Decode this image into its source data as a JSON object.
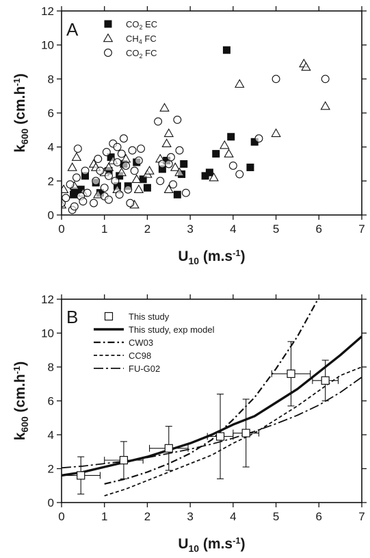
{
  "chart_data": [
    {
      "panel": "A",
      "type": "scatter",
      "xlabel": {
        "main": "U",
        "sub": "10",
        "units_pre": " (m.s",
        "sup": "-1",
        "units_post": ")"
      },
      "ylabel": {
        "main": "k",
        "sub": "600",
        "units_pre": " (cm.h",
        "sup": "-1",
        "units_post": ")"
      },
      "xlim": [
        0,
        7
      ],
      "ylim": [
        0,
        12
      ],
      "xticks": [
        0,
        1,
        2,
        3,
        4,
        5,
        6,
        7
      ],
      "yticks": [
        0,
        2,
        4,
        6,
        8,
        10,
        12
      ],
      "grid": false,
      "legend_position": "top-left",
      "series": [
        {
          "name": {
            "pre": "CO",
            "sub": "2",
            "post": " EC"
          },
          "marker": "filled-square",
          "points": [
            [
              0.28,
              1.2
            ],
            [
              0.3,
              1.4
            ],
            [
              0.45,
              1.5
            ],
            [
              0.55,
              2.3
            ],
            [
              0.8,
              1.9
            ],
            [
              0.9,
              1.3
            ],
            [
              1.1,
              2.6
            ],
            [
              1.15,
              3.4
            ],
            [
              1.3,
              1.7
            ],
            [
              1.35,
              2.3
            ],
            [
              1.45,
              3.0
            ],
            [
              1.55,
              1.7
            ],
            [
              1.75,
              3.1
            ],
            [
              1.9,
              2.1
            ],
            [
              2.0,
              1.6
            ],
            [
              2.35,
              2.7
            ],
            [
              2.45,
              3.2
            ],
            [
              2.7,
              1.2
            ],
            [
              2.8,
              2.4
            ],
            [
              2.85,
              3.0
            ],
            [
              3.35,
              2.3
            ],
            [
              3.45,
              2.5
            ],
            [
              3.6,
              3.6
            ],
            [
              3.85,
              9.7
            ],
            [
              3.95,
              4.6
            ],
            [
              4.4,
              2.8
            ],
            [
              4.5,
              4.3
            ]
          ]
        },
        {
          "name": {
            "pre": "CH",
            "sub": "4",
            "post": " FC"
          },
          "marker": "open-triangle",
          "points": [
            [
              0.0,
              0.6
            ],
            [
              0.05,
              1.5
            ],
            [
              0.25,
              2.8
            ],
            [
              0.3,
              1.7
            ],
            [
              0.35,
              3.4
            ],
            [
              0.5,
              1.3
            ],
            [
              0.75,
              3.0
            ],
            [
              0.8,
              2.8
            ],
            [
              0.85,
              1.2
            ],
            [
              1.0,
              2.5
            ],
            [
              1.1,
              2.8
            ],
            [
              1.2,
              3.2
            ],
            [
              1.3,
              1.5
            ],
            [
              1.4,
              2.5
            ],
            [
              1.5,
              3.3
            ],
            [
              1.7,
              0.6
            ],
            [
              1.75,
              2.1
            ],
            [
              1.8,
              1.5
            ],
            [
              2.0,
              2.4
            ],
            [
              2.05,
              2.6
            ],
            [
              2.3,
              3.3
            ],
            [
              2.4,
              6.3
            ],
            [
              2.45,
              4.2
            ],
            [
              2.5,
              1.5
            ],
            [
              2.5,
              4.8
            ],
            [
              2.65,
              2.8
            ],
            [
              2.75,
              2.5
            ],
            [
              3.55,
              2.2
            ],
            [
              3.8,
              4.1
            ],
            [
              3.9,
              3.6
            ],
            [
              4.15,
              7.7
            ],
            [
              5.0,
              4.8
            ],
            [
              5.65,
              8.9
            ],
            [
              5.7,
              8.7
            ],
            [
              6.15,
              6.4
            ]
          ]
        },
        {
          "name": {
            "pre": "CO",
            "sub": "2",
            "post": " FC"
          },
          "marker": "open-circle",
          "points": [
            [
              0.0,
              0.7
            ],
            [
              0.1,
              1.0
            ],
            [
              0.2,
              1.8
            ],
            [
              0.25,
              0.3
            ],
            [
              0.3,
              0.5
            ],
            [
              0.35,
              2.2
            ],
            [
              0.38,
              3.9
            ],
            [
              0.45,
              1.1
            ],
            [
              0.5,
              0.8
            ],
            [
              0.55,
              2.6
            ],
            [
              0.6,
              1.3
            ],
            [
              0.75,
              0.7
            ],
            [
              0.8,
              2.0
            ],
            [
              0.85,
              3.3
            ],
            [
              0.9,
              2.6
            ],
            [
              1.0,
              1.6
            ],
            [
              1.0,
              1.1
            ],
            [
              1.05,
              3.7
            ],
            [
              1.1,
              2.3
            ],
            [
              1.1,
              0.9
            ],
            [
              1.2,
              4.2
            ],
            [
              1.25,
              2.0
            ],
            [
              1.3,
              3.1
            ],
            [
              1.3,
              4.0
            ],
            [
              1.35,
              1.2
            ],
            [
              1.4,
              3.6
            ],
            [
              1.45,
              4.5
            ],
            [
              1.5,
              2.9
            ],
            [
              1.55,
              1.5
            ],
            [
              1.6,
              0.7
            ],
            [
              1.65,
              3.8
            ],
            [
              1.7,
              2.6
            ],
            [
              1.8,
              3.2
            ],
            [
              1.85,
              3.9
            ],
            [
              2.25,
              5.5
            ],
            [
              2.3,
              2.0
            ],
            [
              2.35,
              3.0
            ],
            [
              2.5,
              3.0
            ],
            [
              2.55,
              3.4
            ],
            [
              2.6,
              1.8
            ],
            [
              2.7,
              5.6
            ],
            [
              2.75,
              3.8
            ],
            [
              2.9,
              1.3
            ],
            [
              4.0,
              2.9
            ],
            [
              4.15,
              2.4
            ],
            [
              4.6,
              4.5
            ],
            [
              5.0,
              8.0
            ],
            [
              6.15,
              8.0
            ]
          ]
        }
      ]
    },
    {
      "panel": "B",
      "type": "line",
      "xlabel": {
        "main": "U",
        "sub": "10",
        "units_pre": " (m.s",
        "sup": "-1",
        "units_post": ")"
      },
      "ylabel": {
        "main": "k",
        "sub": "600",
        "units_pre": " (cm.h",
        "sup": "-1",
        "units_post": ")"
      },
      "xlim": [
        0,
        7
      ],
      "ylim": [
        0,
        12
      ],
      "xticks": [
        0,
        1,
        2,
        3,
        4,
        5,
        6,
        7
      ],
      "yticks": [
        0,
        2,
        4,
        6,
        8,
        10,
        12
      ],
      "grid": false,
      "legend_position": "top-left",
      "series": [
        {
          "name": "This study",
          "marker": "open-square",
          "points": [
            {
              "x": 0.45,
              "y": 1.6,
              "xerr": 0.45,
              "yerr_low": 1.1,
              "yerr_high": 1.1
            },
            {
              "x": 1.45,
              "y": 2.5,
              "xerr": 0.45,
              "yerr_low": 1.1,
              "yerr_high": 1.1
            },
            {
              "x": 2.5,
              "y": 3.2,
              "xerr": 0.45,
              "yerr_low": 1.3,
              "yerr_high": 1.3
            },
            {
              "x": 3.7,
              "y": 3.9,
              "xerr": 0.3,
              "yerr_low": 2.5,
              "yerr_high": 2.5
            },
            {
              "x": 4.3,
              "y": 4.1,
              "xerr": 0.3,
              "yerr_low": 2.0,
              "yerr_high": 2.0
            },
            {
              "x": 5.35,
              "y": 7.6,
              "xerr": 0.45,
              "yerr_low": 1.9,
              "yerr_high": 1.9
            },
            {
              "x": 6.15,
              "y": 7.2,
              "xerr": 0.3,
              "yerr_low": 1.2,
              "yerr_high": 1.2
            }
          ]
        },
        {
          "name": "This study, exp model",
          "style": "solid-thick",
          "x": [
            0,
            0.5,
            1,
            1.5,
            2,
            2.5,
            3,
            3.5,
            4,
            4.5,
            5,
            5.5,
            6,
            6.5,
            7
          ],
          "values": [
            1.6,
            1.8,
            2.1,
            2.4,
            2.7,
            3.1,
            3.5,
            4.0,
            4.6,
            5.1,
            5.9,
            6.7,
            7.7,
            8.7,
            9.8
          ]
        },
        {
          "name": "CW03",
          "style": "dash-dot",
          "x": [
            1,
            1.5,
            2,
            2.5,
            3,
            3.5,
            4,
            4.5,
            5,
            5.5,
            6
          ],
          "values": [
            1.1,
            1.4,
            1.8,
            2.3,
            2.9,
            3.7,
            4.9,
            6.2,
            7.9,
            9.8,
            12.1
          ]
        },
        {
          "name": "CC98",
          "style": "dashed",
          "x": [
            1,
            1.5,
            2,
            2.5,
            3,
            3.5,
            4,
            4.5,
            5,
            5.5,
            6,
            6.5,
            7
          ],
          "values": [
            0.4,
            0.8,
            1.3,
            1.8,
            2.3,
            2.8,
            3.5,
            4.1,
            4.9,
            5.7,
            6.6,
            7.5,
            8.0
          ]
        },
        {
          "name": "FU-G02",
          "style": "long-dash-dot",
          "x": [
            0,
            0.5,
            1,
            1.5,
            2,
            2.5,
            3,
            3.5,
            4,
            4.5,
            5,
            5.5,
            6,
            6.5,
            7
          ],
          "values": [
            2.05,
            2.15,
            2.3,
            2.45,
            2.65,
            2.9,
            3.15,
            3.45,
            3.8,
            4.2,
            4.65,
            5.15,
            5.75,
            6.5,
            7.4
          ]
        }
      ]
    }
  ]
}
